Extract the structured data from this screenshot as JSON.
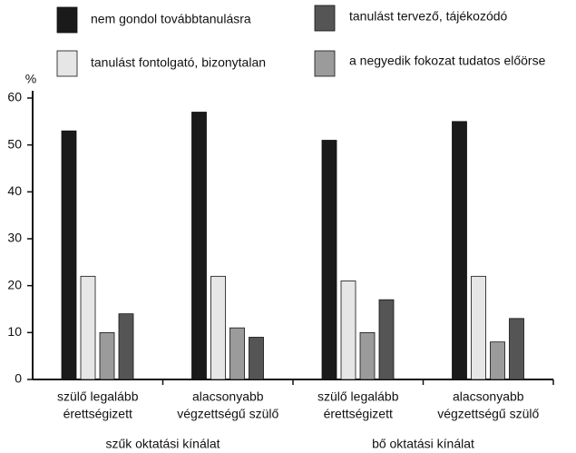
{
  "chart_data": {
    "type": "bar",
    "y_label": "%",
    "categories": [
      [
        "szülő legalább",
        "érettségizett"
      ],
      [
        "alacsonyabb",
        "végzettségű szülő"
      ],
      [
        "szülő legalább",
        "érettségizett"
      ],
      [
        "alacsonyabb",
        "végzettségű szülő"
      ]
    ],
    "groups": [
      "szűk oktatási kínálat",
      "bő oktatási kínálat"
    ],
    "series": [
      {
        "name": "nem gondol továbbtanulásra",
        "color": "#1a1a1a",
        "values": [
          53,
          57,
          51,
          55
        ]
      },
      {
        "name": "tanulást fontolgató, bizonytalan",
        "color": "#e6e6e6",
        "values": [
          22,
          22,
          21,
          22
        ]
      },
      {
        "name": "a negyedik fokozat tudatos előörse",
        "color": "#9b9b9b",
        "values": [
          10,
          11,
          10,
          8
        ]
      },
      {
        "name": "tanulást tervező, tájékozódó",
        "color": "#555555",
        "values": [
          14,
          9,
          17,
          13
        ]
      }
    ],
    "ylim": [
      0,
      60
    ],
    "yticks": [
      0,
      10,
      20,
      30,
      40,
      50,
      60
    ],
    "grid": false
  }
}
